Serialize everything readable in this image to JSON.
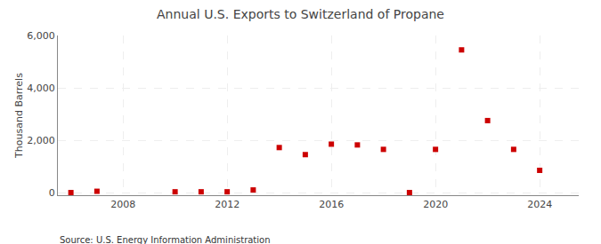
{
  "chart_data": {
    "type": "scatter",
    "title": "Annual U.S. Exports to Switzerland of Propane",
    "ylabel": "Thousand Barrels",
    "annotations": [
      "Source: U.S. Energy Information Administration"
    ],
    "x": [
      2006,
      2007,
      2010,
      2011,
      2012,
      2013,
      2014,
      2015,
      2016,
      2017,
      2018,
      2019,
      2020,
      2021,
      2022,
      2023,
      2024
    ],
    "values": [
      0,
      50,
      30,
      30,
      30,
      100,
      1720,
      1450,
      1850,
      1820,
      1650,
      0,
      1650,
      5450,
      2750,
      1650,
      850
    ],
    "color": "#cc0000",
    "marker": "square",
    "xlim": [
      2005.5,
      2025.5
    ],
    "ylim": [
      -100,
      6000
    ],
    "xticks": [
      2008,
      2012,
      2016,
      2020,
      2024
    ],
    "yticks": [
      0,
      {
        "value": 2000,
        "label": "2,000"
      },
      {
        "value": 4000,
        "label": "4,000"
      },
      {
        "value": 6000,
        "label": "6,000"
      }
    ],
    "grid": true
  }
}
